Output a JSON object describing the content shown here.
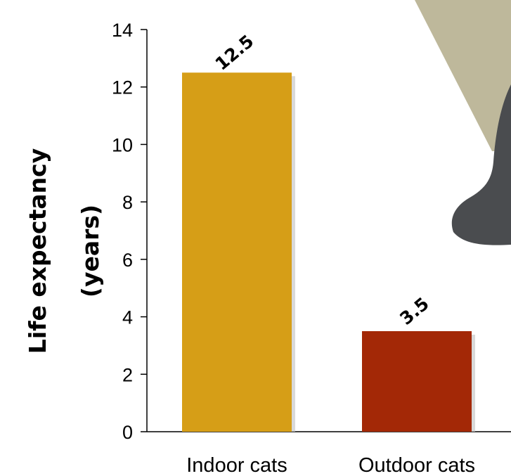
{
  "chart_data": {
    "type": "bar",
    "title": "",
    "xlabel": "",
    "ylabel_lines": [
      "Life expectancy",
      "(years)"
    ],
    "categories": [
      "Indoor cats",
      "Outdoor cats"
    ],
    "values": [
      12.5,
      3.5
    ],
    "data_labels": [
      "12.5",
      "3.5"
    ],
    "bar_colors": [
      "#D69E17",
      "#A32806"
    ],
    "ylim": [
      0,
      14
    ],
    "yticks": [
      0,
      2,
      4,
      6,
      8,
      10,
      12,
      14
    ],
    "grid": false,
    "legend": "none"
  },
  "decoration": {
    "tan_color": "#BEB89B",
    "cat_color": "#4A4C4F"
  }
}
